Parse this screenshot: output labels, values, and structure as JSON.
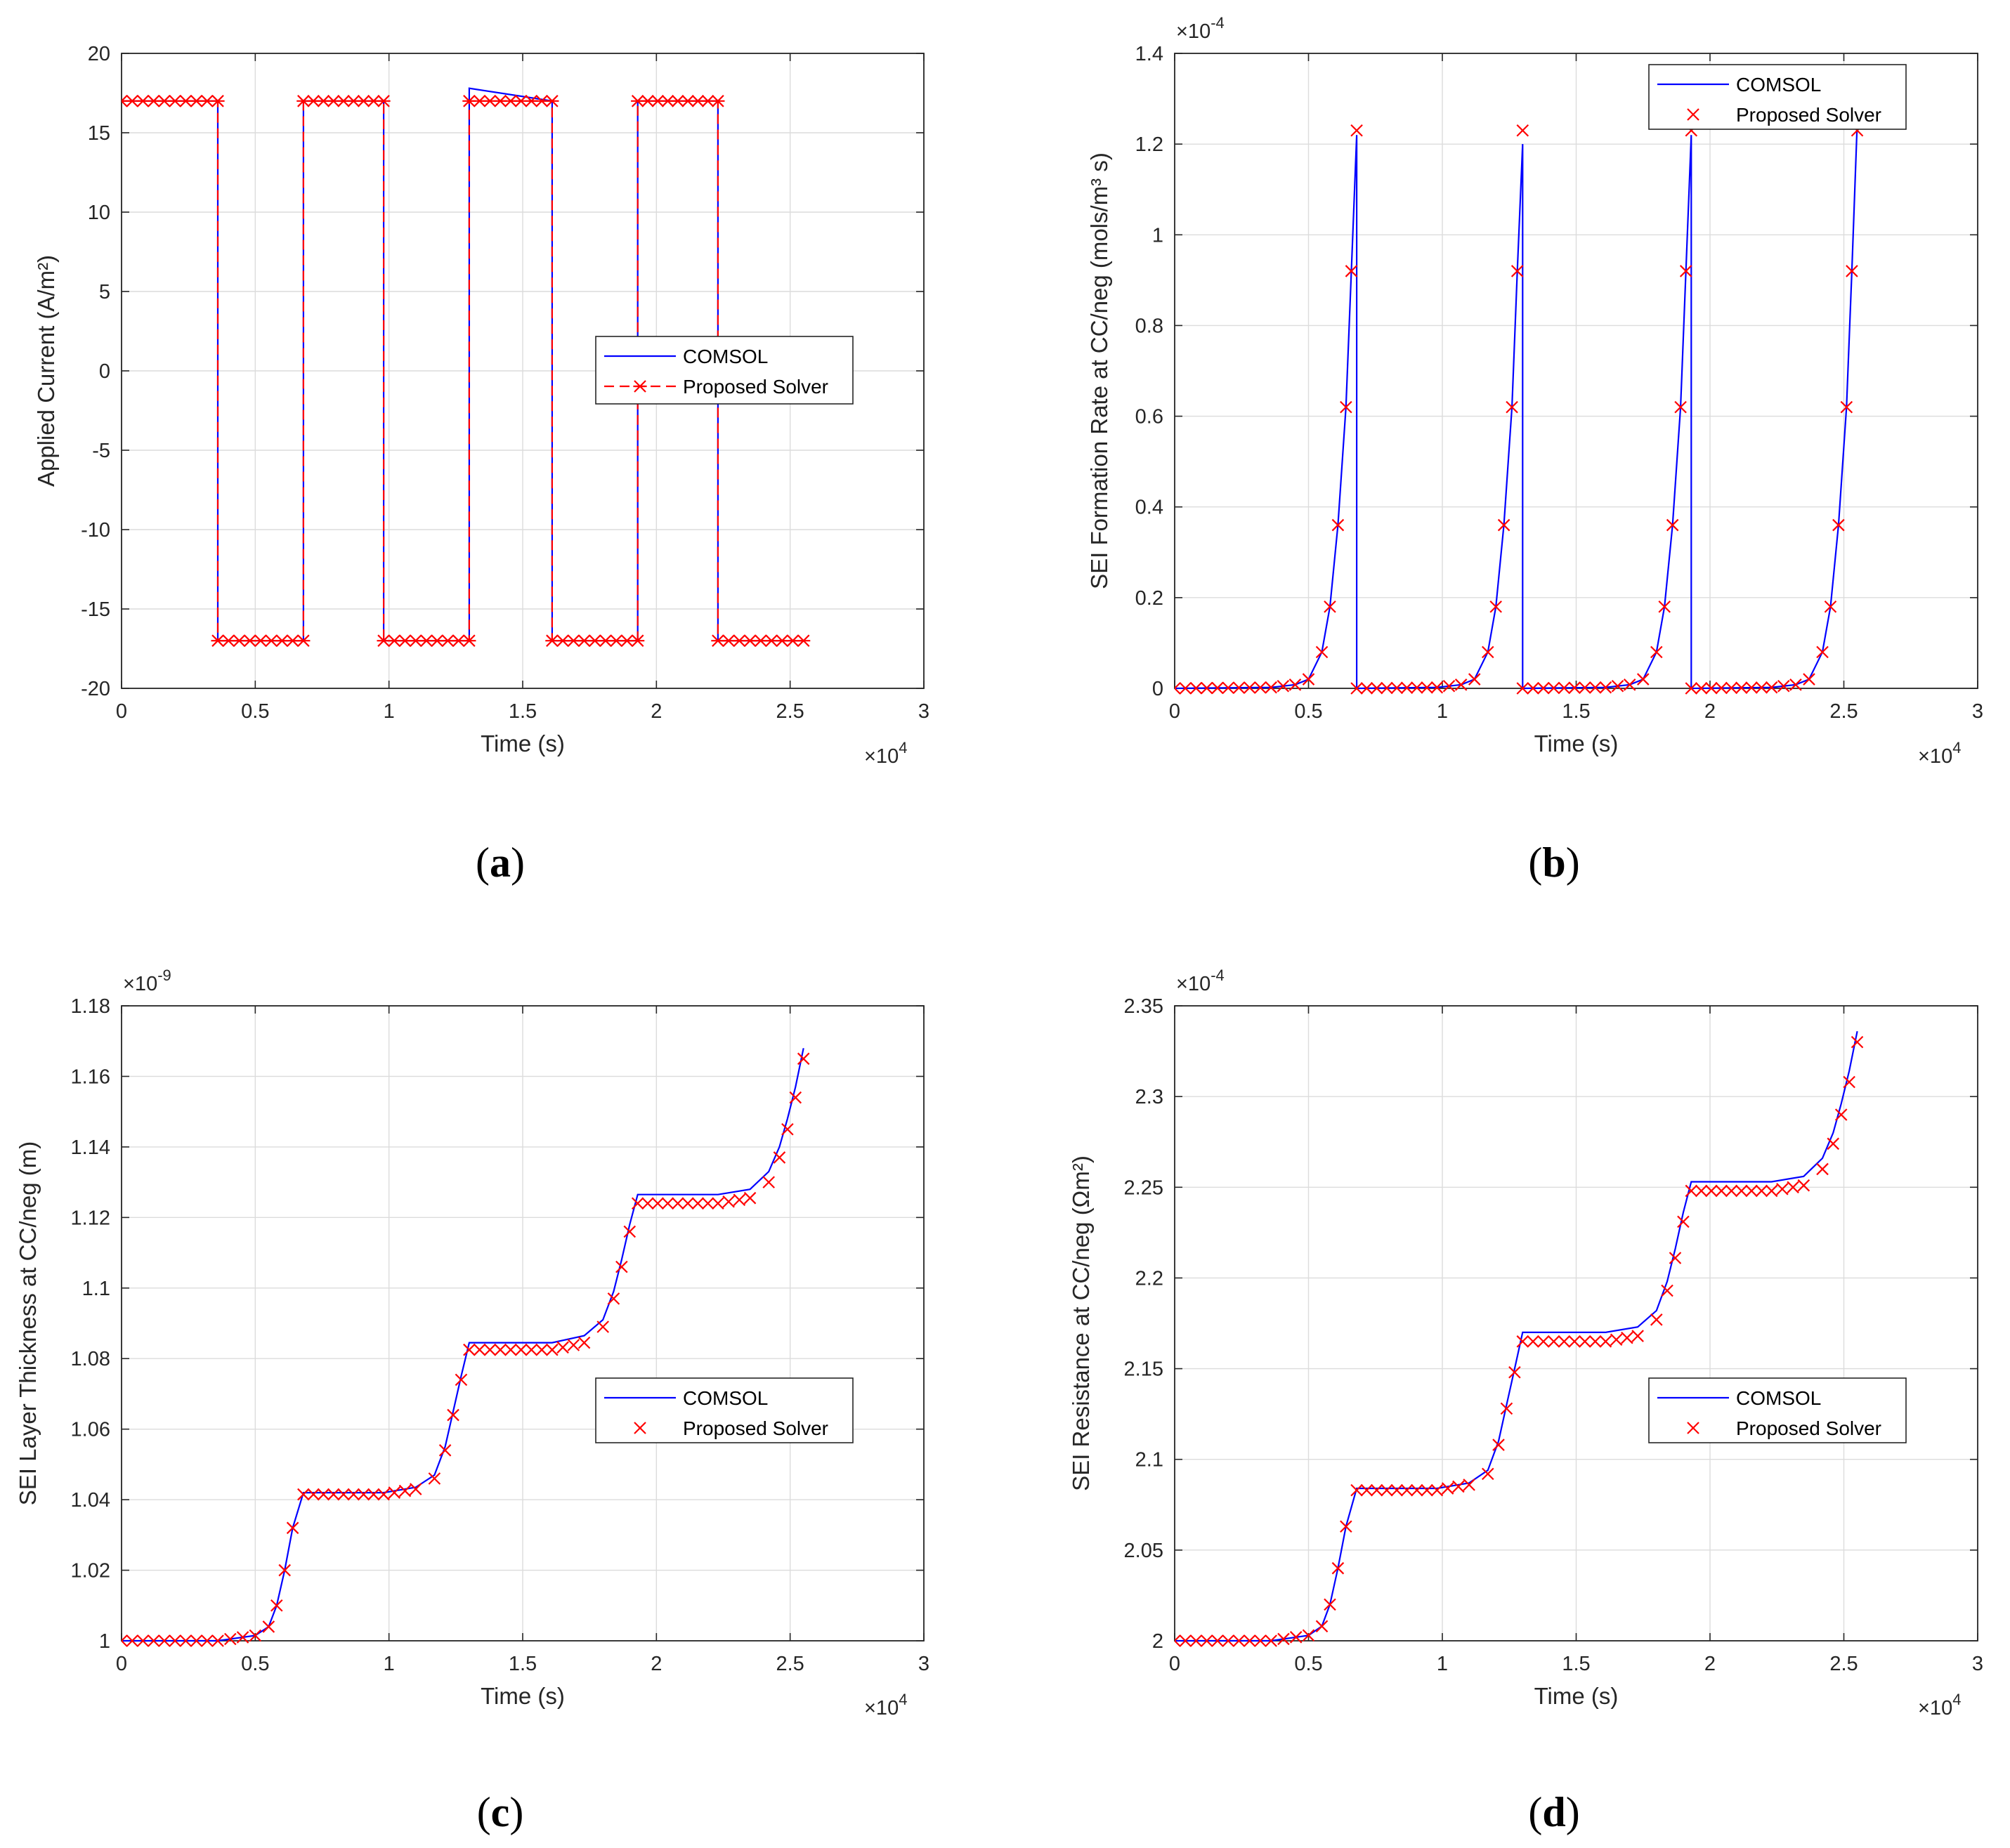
{
  "chart_data": [
    {
      "type": "line",
      "caption": "a",
      "xlabel": "Time (s)",
      "ylabel": "Applied Current (A/m²)",
      "x_exponent": "4",
      "y_exponent": "",
      "xlim": [
        0,
        3
      ],
      "ylim": [
        -20,
        20
      ],
      "xticks": [
        0,
        0.5,
        1,
        1.5,
        2,
        2.5,
        3
      ],
      "xtick_labels": [
        "0",
        "0.5",
        "1",
        "1.5",
        "2",
        "2.5",
        "3"
      ],
      "yticks": [
        -20,
        -15,
        -10,
        -5,
        0,
        5,
        10,
        15,
        20
      ],
      "ytick_labels": [
        "-20",
        "-15",
        "-10",
        "-5",
        "0",
        "5",
        "10",
        "15",
        "20"
      ],
      "grid": true,
      "legend_position": "center-right",
      "series": [
        {
          "name": "COMSOL",
          "color": "#0000ff",
          "style": "solid",
          "marker": "none",
          "x": [
            0,
            0.36,
            0.36,
            0.68,
            0.68,
            0.98,
            0.98,
            1.3,
            1.3,
            1.61,
            1.61,
            1.93,
            1.93,
            2.23,
            2.23,
            2.55
          ],
          "y": [
            17,
            17,
            -17,
            -17,
            17,
            17,
            -17,
            -17,
            17.8,
            17,
            -17,
            -17,
            17,
            17,
            -17,
            -17
          ]
        },
        {
          "name": "Proposed Solver",
          "color": "#ff0000",
          "style": "dashed",
          "marker": "asterisk",
          "x": [
            0,
            0.36,
            0.36,
            0.68,
            0.68,
            0.98,
            0.98,
            1.3,
            1.3,
            1.61,
            1.61,
            1.93,
            1.93,
            2.23,
            2.23,
            2.55
          ],
          "y": [
            17,
            17,
            -17,
            -17,
            17,
            17,
            -17,
            -17,
            17,
            17,
            -17,
            -17,
            17,
            17,
            -17,
            -17
          ]
        }
      ]
    },
    {
      "type": "line",
      "caption": "b",
      "xlabel": "Time (s)",
      "ylabel": "SEI Formation Rate at CC/neg (mols/m³ s)",
      "x_exponent": "4",
      "y_exponent": "-4",
      "xlim": [
        0,
        3
      ],
      "ylim": [
        0,
        1.4
      ],
      "xticks": [
        0,
        0.5,
        1,
        1.5,
        2,
        2.5,
        3
      ],
      "xtick_labels": [
        "0",
        "0.5",
        "1",
        "1.5",
        "2",
        "2.5",
        "3"
      ],
      "yticks": [
        0,
        0.2,
        0.4,
        0.6,
        0.8,
        1,
        1.2,
        1.4
      ],
      "ytick_labels": [
        "0",
        "0.2",
        "0.4",
        "0.6",
        "0.8",
        "1",
        "1.2",
        "1.4"
      ],
      "grid": true,
      "legend_position": "top-right",
      "series": [
        {
          "name": "COMSOL",
          "color": "#0000ff",
          "style": "solid",
          "marker": "none",
          "x": [
            0,
            0.36,
            0.45,
            0.5,
            0.55,
            0.58,
            0.61,
            0.64,
            0.66,
            0.68,
            0.68,
            0.98,
            1.07,
            1.12,
            1.17,
            1.2,
            1.23,
            1.26,
            1.28,
            1.3,
            1.3,
            1.61,
            1.7,
            1.75,
            1.8,
            1.83,
            1.86,
            1.89,
            1.91,
            1.93,
            1.93,
            2.23,
            2.32,
            2.37,
            2.42,
            2.45,
            2.48,
            2.51,
            2.53,
            2.55
          ],
          "y": [
            0,
            0.002,
            0.008,
            0.02,
            0.08,
            0.18,
            0.36,
            0.62,
            0.92,
            1.22,
            0,
            0.002,
            0.008,
            0.02,
            0.08,
            0.18,
            0.36,
            0.62,
            0.92,
            1.2,
            0,
            0.002,
            0.008,
            0.02,
            0.08,
            0.18,
            0.36,
            0.62,
            0.92,
            1.22,
            0,
            0.002,
            0.008,
            0.02,
            0.08,
            0.18,
            0.36,
            0.62,
            0.92,
            1.25
          ]
        },
        {
          "name": "Proposed Solver",
          "color": "#ff0000",
          "style": "none",
          "marker": "x",
          "x": [
            0,
            0.36,
            0.45,
            0.5,
            0.55,
            0.58,
            0.61,
            0.64,
            0.66,
            0.68,
            0.68,
            0.98,
            1.07,
            1.12,
            1.17,
            1.2,
            1.23,
            1.26,
            1.28,
            1.3,
            1.3,
            1.61,
            1.7,
            1.75,
            1.8,
            1.83,
            1.86,
            1.89,
            1.91,
            1.93,
            1.93,
            2.23,
            2.32,
            2.37,
            2.42,
            2.45,
            2.48,
            2.51,
            2.53,
            2.55
          ],
          "y": [
            0,
            0.002,
            0.008,
            0.02,
            0.08,
            0.18,
            0.36,
            0.62,
            0.92,
            1.23,
            0,
            0.002,
            0.008,
            0.02,
            0.08,
            0.18,
            0.36,
            0.62,
            0.92,
            1.23,
            0,
            0.002,
            0.008,
            0.02,
            0.08,
            0.18,
            0.36,
            0.62,
            0.92,
            1.23,
            0,
            0.002,
            0.008,
            0.02,
            0.08,
            0.18,
            0.36,
            0.62,
            0.92,
            1.23
          ]
        }
      ]
    },
    {
      "type": "line",
      "caption": "c",
      "xlabel": "Time (s)",
      "ylabel": "SEI Layer Thickness at CC/neg (m)",
      "x_exponent": "4",
      "y_exponent": "-9",
      "xlim": [
        0,
        3
      ],
      "ylim": [
        1,
        1.18
      ],
      "xticks": [
        0,
        0.5,
        1,
        1.5,
        2,
        2.5,
        3
      ],
      "xtick_labels": [
        "0",
        "0.5",
        "1",
        "1.5",
        "2",
        "2.5",
        "3"
      ],
      "yticks": [
        1,
        1.02,
        1.04,
        1.06,
        1.08,
        1.1,
        1.12,
        1.14,
        1.16,
        1.18
      ],
      "ytick_labels": [
        "1",
        "1.02",
        "1.04",
        "1.06",
        "1.08",
        "1.1",
        "1.12",
        "1.14",
        "1.16",
        "1.18"
      ],
      "grid": true,
      "legend_position": "center-right",
      "series": [
        {
          "name": "COMSOL",
          "color": "#0000ff",
          "style": "solid",
          "marker": "none",
          "x": [
            0,
            0.36,
            0.5,
            0.55,
            0.58,
            0.61,
            0.64,
            0.68,
            0.98,
            1.1,
            1.17,
            1.21,
            1.24,
            1.27,
            1.3,
            1.61,
            1.73,
            1.8,
            1.84,
            1.87,
            1.9,
            1.93,
            2.23,
            2.35,
            2.42,
            2.46,
            2.49,
            2.52,
            2.55
          ],
          "y": [
            1.0,
            1.0,
            1.0015,
            1.004,
            1.01,
            1.02,
            1.032,
            1.042,
            1.042,
            1.0435,
            1.047,
            1.055,
            1.065,
            1.075,
            1.0845,
            1.0845,
            1.0865,
            1.091,
            1.099,
            1.108,
            1.118,
            1.1265,
            1.1265,
            1.128,
            1.133,
            1.14,
            1.148,
            1.157,
            1.168
          ]
        },
        {
          "name": "Proposed Solver",
          "color": "#ff0000",
          "style": "none",
          "marker": "x",
          "x": [
            0,
            0.36,
            0.5,
            0.55,
            0.58,
            0.61,
            0.64,
            0.68,
            0.98,
            1.1,
            1.17,
            1.21,
            1.24,
            1.27,
            1.3,
            1.61,
            1.73,
            1.8,
            1.84,
            1.87,
            1.9,
            1.93,
            2.23,
            2.35,
            2.42,
            2.46,
            2.49,
            2.52,
            2.55
          ],
          "y": [
            1.0,
            1.0,
            1.0015,
            1.004,
            1.01,
            1.02,
            1.032,
            1.0415,
            1.0415,
            1.043,
            1.046,
            1.054,
            1.064,
            1.074,
            1.0825,
            1.0825,
            1.0845,
            1.089,
            1.097,
            1.106,
            1.116,
            1.124,
            1.124,
            1.1255,
            1.13,
            1.137,
            1.145,
            1.154,
            1.165
          ]
        }
      ]
    },
    {
      "type": "line",
      "caption": "d",
      "xlabel": "Time (s)",
      "ylabel": "SEI Resistance at CC/neg (Ωm²)",
      "x_exponent": "4",
      "y_exponent": "-4",
      "xlim": [
        0,
        3
      ],
      "ylim": [
        2,
        2.35
      ],
      "xticks": [
        0,
        0.5,
        1,
        1.5,
        2,
        2.5,
        3
      ],
      "xtick_labels": [
        "0",
        "0.5",
        "1",
        "1.5",
        "2",
        "2.5",
        "3"
      ],
      "yticks": [
        2,
        2.05,
        2.1,
        2.15,
        2.2,
        2.25,
        2.3,
        2.35
      ],
      "ytick_labels": [
        "2",
        "2.05",
        "2.1",
        "2.15",
        "2.2",
        "2.25",
        "2.3",
        "2.35"
      ],
      "grid": true,
      "legend_position": "center-right",
      "series": [
        {
          "name": "COMSOL",
          "color": "#0000ff",
          "style": "solid",
          "marker": "none",
          "x": [
            0,
            0.36,
            0.5,
            0.55,
            0.58,
            0.61,
            0.64,
            0.68,
            0.98,
            1.1,
            1.17,
            1.21,
            1.24,
            1.27,
            1.3,
            1.61,
            1.73,
            1.8,
            1.84,
            1.87,
            1.9,
            1.93,
            2.23,
            2.35,
            2.42,
            2.46,
            2.49,
            2.52,
            2.55
          ],
          "y": [
            2.0,
            2.0,
            2.003,
            2.008,
            2.02,
            2.04,
            2.063,
            2.084,
            2.084,
            2.087,
            2.094,
            2.11,
            2.13,
            2.15,
            2.17,
            2.17,
            2.173,
            2.182,
            2.198,
            2.216,
            2.236,
            2.253,
            2.253,
            2.256,
            2.266,
            2.28,
            2.296,
            2.314,
            2.336
          ]
        },
        {
          "name": "Proposed Solver",
          "color": "#ff0000",
          "style": "none",
          "marker": "x",
          "x": [
            0,
            0.36,
            0.5,
            0.55,
            0.58,
            0.61,
            0.64,
            0.68,
            0.98,
            1.1,
            1.17,
            1.21,
            1.24,
            1.27,
            1.3,
            1.61,
            1.73,
            1.8,
            1.84,
            1.87,
            1.9,
            1.93,
            2.23,
            2.35,
            2.42,
            2.46,
            2.49,
            2.52,
            2.55
          ],
          "y": [
            2.0,
            2.0,
            2.003,
            2.008,
            2.02,
            2.04,
            2.063,
            2.083,
            2.083,
            2.086,
            2.092,
            2.108,
            2.128,
            2.148,
            2.165,
            2.165,
            2.168,
            2.177,
            2.193,
            2.211,
            2.231,
            2.248,
            2.248,
            2.251,
            2.26,
            2.274,
            2.29,
            2.308,
            2.33
          ]
        }
      ]
    }
  ]
}
